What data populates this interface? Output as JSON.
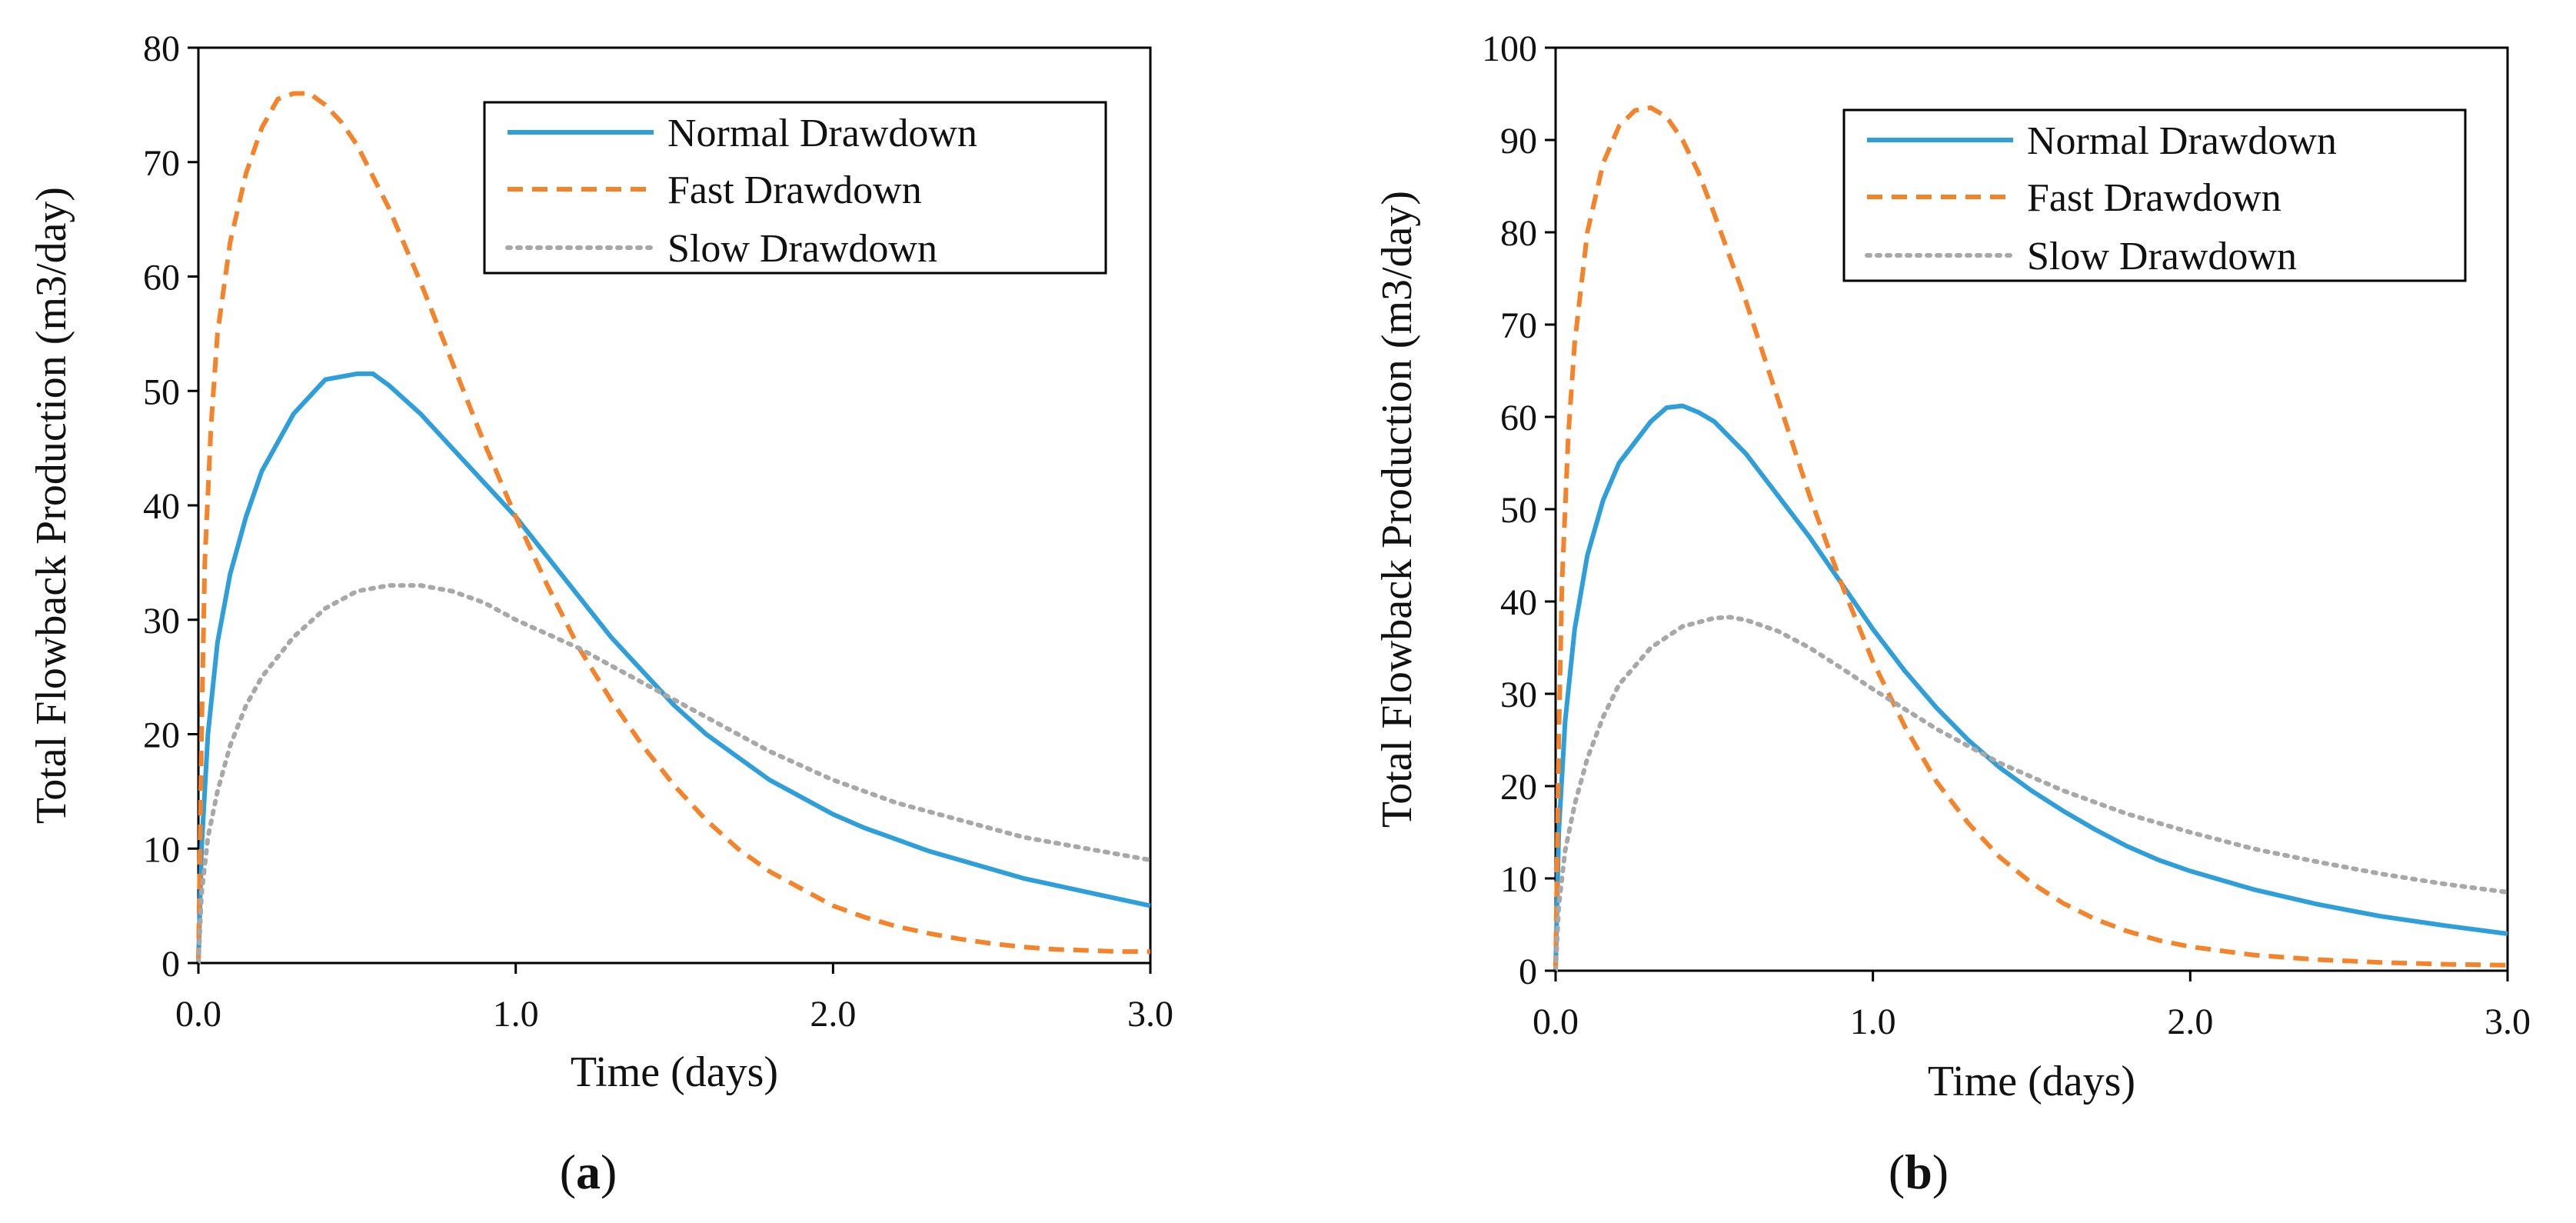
{
  "chart_data": [
    {
      "type": "line",
      "panel": "a",
      "panel_label": {
        "open": "(",
        "letter": "a",
        "close": ")"
      },
      "title": "",
      "xlabel": "Time (days)",
      "ylabel": "Total Flowback Production  (m3/day)",
      "xlim": [
        0,
        3
      ],
      "ylim": [
        0,
        80
      ],
      "x_ticks": [
        0,
        1,
        2,
        3
      ],
      "x_tick_labels": [
        "0.0",
        "1.0",
        "2.0",
        "3.0"
      ],
      "y_ticks": [
        0,
        10,
        20,
        30,
        40,
        50,
        60,
        70,
        80
      ],
      "y_tick_labels": [
        "0",
        "10",
        "20",
        "30",
        "40",
        "50",
        "60",
        "70",
        "80"
      ],
      "grid": false,
      "legend": "top-right",
      "series": [
        {
          "name": "Normal Drawdown",
          "color": "#2F9FD9",
          "style": "solid",
          "x": [
            0,
            0.01,
            0.03,
            0.06,
            0.1,
            0.15,
            0.2,
            0.3,
            0.4,
            0.5,
            0.55,
            0.6,
            0.7,
            0.8,
            0.9,
            1.0,
            1.1,
            1.2,
            1.3,
            1.4,
            1.5,
            1.6,
            1.7,
            1.8,
            1.9,
            2.0,
            2.1,
            2.2,
            2.3,
            2.4,
            2.5,
            2.6,
            2.7,
            2.8,
            2.9,
            3.0
          ],
          "y": [
            0,
            10,
            20,
            28,
            34,
            39,
            43,
            48,
            51,
            51.5,
            51.5,
            50.5,
            48,
            45,
            42,
            39,
            35.5,
            32,
            28.5,
            25.5,
            22.5,
            20,
            18,
            16,
            14.5,
            13,
            11.8,
            10.8,
            9.8,
            9,
            8.2,
            7.4,
            6.8,
            6.2,
            5.6,
            5
          ]
        },
        {
          "name": "Fast Drawdown",
          "color": "#F4832A",
          "style": "dashed",
          "x": [
            0,
            0.01,
            0.02,
            0.04,
            0.06,
            0.1,
            0.15,
            0.2,
            0.25,
            0.3,
            0.35,
            0.4,
            0.45,
            0.5,
            0.6,
            0.7,
            0.8,
            0.9,
            1.0,
            1.1,
            1.2,
            1.3,
            1.4,
            1.5,
            1.6,
            1.7,
            1.8,
            1.9,
            2.0,
            2.1,
            2.2,
            2.3,
            2.4,
            2.5,
            2.6,
            2.7,
            2.8,
            2.9,
            3.0
          ],
          "y": [
            0,
            20,
            35,
            47,
            55,
            63,
            69,
            73,
            75.5,
            76,
            76,
            75,
            73.5,
            71.5,
            66,
            59.5,
            52.5,
            45.5,
            39,
            33,
            27.5,
            23,
            19,
            15.5,
            12.5,
            10,
            8,
            6.5,
            5,
            4,
            3.2,
            2.6,
            2.1,
            1.7,
            1.4,
            1.2,
            1.1,
            1.0,
            1.0
          ]
        },
        {
          "name": "Slow Drawdown",
          "color": "#A8A8A8",
          "style": "dotted",
          "x": [
            0,
            0.01,
            0.03,
            0.06,
            0.1,
            0.15,
            0.2,
            0.3,
            0.4,
            0.5,
            0.6,
            0.65,
            0.7,
            0.8,
            0.9,
            1.0,
            1.2,
            1.4,
            1.6,
            1.8,
            2.0,
            2.2,
            2.4,
            2.6,
            2.8,
            3.0
          ],
          "y": [
            0,
            6,
            11,
            15,
            19,
            22.5,
            25,
            28.5,
            31,
            32.5,
            33,
            33,
            33,
            32.5,
            31.5,
            30,
            27.5,
            24.5,
            21.5,
            18.5,
            16,
            14,
            12.5,
            11,
            10,
            9
          ]
        }
      ]
    },
    {
      "type": "line",
      "panel": "b",
      "panel_label": {
        "open": "(",
        "letter": "b",
        "close": ")"
      },
      "title": "",
      "xlabel": "Time (days)",
      "ylabel": "Total Flowback Production  (m3/day)",
      "xlim": [
        0,
        3
      ],
      "ylim": [
        0,
        100
      ],
      "x_ticks": [
        0,
        1,
        2,
        3
      ],
      "x_tick_labels": [
        "0.0",
        "1.0",
        "2.0",
        "3.0"
      ],
      "y_ticks": [
        0,
        10,
        20,
        30,
        40,
        50,
        60,
        70,
        80,
        90,
        100
      ],
      "y_tick_labels": [
        "0",
        "10",
        "20",
        "30",
        "40",
        "50",
        "60",
        "70",
        "80",
        "90",
        "100"
      ],
      "grid": false,
      "legend": "top-right",
      "series": [
        {
          "name": "Normal Drawdown",
          "color": "#2F9FD9",
          "style": "solid",
          "x": [
            0,
            0.01,
            0.03,
            0.06,
            0.1,
            0.15,
            0.2,
            0.3,
            0.35,
            0.4,
            0.45,
            0.5,
            0.6,
            0.7,
            0.8,
            0.9,
            1.0,
            1.1,
            1.2,
            1.3,
            1.4,
            1.5,
            1.6,
            1.7,
            1.8,
            1.9,
            2.0,
            2.2,
            2.4,
            2.6,
            2.8,
            3.0
          ],
          "y": [
            0,
            15,
            27,
            37,
            45,
            51,
            55,
            59.5,
            61,
            61.2,
            60.5,
            59.5,
            56,
            51.5,
            47,
            42,
            37,
            32.5,
            28.5,
            25,
            22,
            19.5,
            17.3,
            15.3,
            13.5,
            12,
            10.8,
            8.8,
            7.2,
            5.9,
            4.9,
            4
          ]
        },
        {
          "name": "Fast Drawdown",
          "color": "#F4832A",
          "style": "dashed",
          "x": [
            0,
            0.01,
            0.02,
            0.04,
            0.06,
            0.1,
            0.15,
            0.2,
            0.25,
            0.3,
            0.35,
            0.4,
            0.45,
            0.5,
            0.6,
            0.7,
            0.8,
            0.9,
            1.0,
            1.1,
            1.2,
            1.3,
            1.4,
            1.5,
            1.6,
            1.7,
            1.8,
            1.9,
            2.0,
            2.2,
            2.4,
            2.6,
            2.8,
            3.0
          ],
          "y": [
            0,
            25,
            42,
            58,
            68,
            80,
            87.5,
            91.5,
            93.2,
            93.5,
            92.5,
            90,
            86.5,
            82,
            72.5,
            62,
            51.5,
            42,
            33.5,
            26.5,
            20.5,
            16,
            12.3,
            9.5,
            7.3,
            5.6,
            4.3,
            3.3,
            2.6,
            1.7,
            1.2,
            0.9,
            0.7,
            0.6
          ]
        },
        {
          "name": "Slow Drawdown",
          "color": "#A8A8A8",
          "style": "dotted",
          "x": [
            0,
            0.01,
            0.03,
            0.06,
            0.1,
            0.15,
            0.2,
            0.3,
            0.4,
            0.5,
            0.55,
            0.6,
            0.7,
            0.8,
            0.9,
            1.0,
            1.2,
            1.4,
            1.6,
            1.8,
            2.0,
            2.2,
            2.4,
            2.6,
            2.8,
            3.0
          ],
          "y": [
            0,
            7,
            13,
            18,
            23,
            27.5,
            31,
            35,
            37.3,
            38.2,
            38.3,
            38,
            36.8,
            35,
            32.8,
            30.5,
            26.2,
            22.5,
            19.5,
            17,
            15,
            13.2,
            11.8,
            10.5,
            9.4,
            8.5
          ]
        }
      ]
    }
  ]
}
